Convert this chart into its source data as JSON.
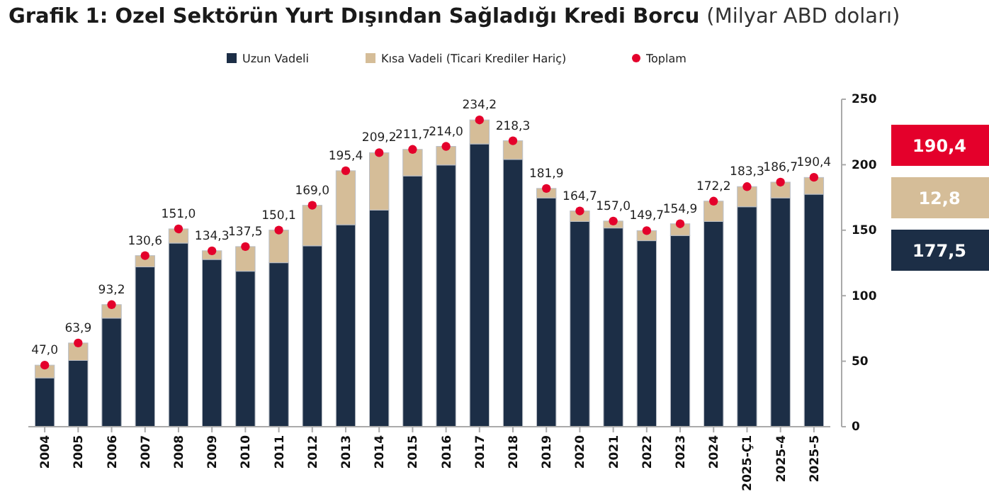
{
  "chart_data": {
    "type": "bar",
    "title": "Grafik 1: Ozel Sektörün Yurt Dışından Sağladığı Kredi Borcu",
    "subtitle": "(Milyar ABD doları)",
    "categories": [
      "2004",
      "2005",
      "2006",
      "2007",
      "2008",
      "2009",
      "2010",
      "2011",
      "2012",
      "2013",
      "2014",
      "2015",
      "2016",
      "2017",
      "2018",
      "2019",
      "2020",
      "2021",
      "2022",
      "2023",
      "2024",
      "2025-Ç1",
      "2025-4",
      "2025-5"
    ],
    "stacked": true,
    "legend": "top",
    "grid": false,
    "ylim": [
      0,
      250
    ],
    "yticks": [
      0,
      50,
      100,
      150,
      200,
      250
    ],
    "series": [
      {
        "name": "Uzun Vadeli",
        "color": "#1c2e46",
        "values": [
          37.3,
          50.6,
          82.9,
          122.0,
          140.2,
          127.7,
          118.7,
          125.2,
          138.1,
          154.2,
          165.4,
          191.5,
          199.8,
          215.9,
          204.1,
          174.7,
          156.7,
          151.7,
          142.0,
          146.0,
          156.7,
          167.9,
          174.7,
          177.5
        ]
      },
      {
        "name": "Kısa Vadeli (Ticari Krediler Hariç)",
        "color": "#d5bd98",
        "values": [
          9.7,
          13.3,
          10.3,
          8.6,
          10.8,
          6.6,
          18.8,
          24.9,
          30.9,
          41.2,
          43.8,
          20.2,
          14.2,
          18.3,
          14.2,
          7.2,
          8.0,
          5.3,
          7.7,
          8.9,
          15.5,
          15.4,
          12.0,
          12.8
        ]
      },
      {
        "name": "Toplam",
        "type": "scatter",
        "marker": "circle",
        "color": "#e4002b",
        "values": [
          47.0,
          63.9,
          93.2,
          130.6,
          151.0,
          134.3,
          137.5,
          150.1,
          169.0,
          195.4,
          209.2,
          211.7,
          214.0,
          234.2,
          218.3,
          181.9,
          164.7,
          157.0,
          149.7,
          154.9,
          172.2,
          183.3,
          186.7,
          190.4
        ],
        "value_labels": [
          "47,0",
          "63,9",
          "93,2",
          "130,6",
          "151,0",
          "134,3",
          "137,5",
          "150,1",
          "169,0",
          "195,4",
          "209,2",
          "211,7",
          "214,0",
          "234,2",
          "218,3",
          "181,9",
          "164,7",
          "157,0",
          "149,7",
          "154,9",
          "172,2",
          "183,3",
          "186,7",
          "190,4"
        ]
      }
    ],
    "annotations": [
      "190,4",
      "12,8",
      "177,5"
    ]
  }
}
